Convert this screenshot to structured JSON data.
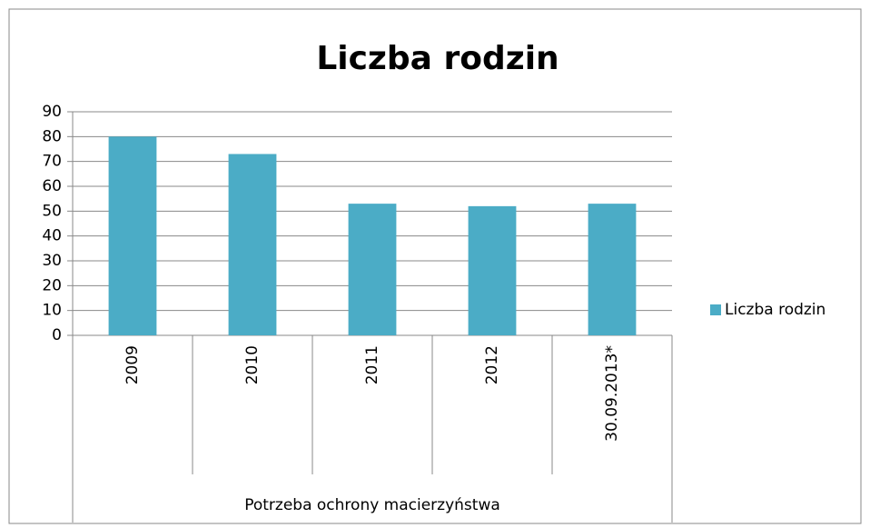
{
  "chart_data": {
    "type": "bar",
    "title": "Liczba rodzin",
    "categories": [
      "2009",
      "2010",
      "2011",
      "2012",
      "30.09.2013*"
    ],
    "series": [
      {
        "name": "Liczba rodzin",
        "color": "#4bacc6",
        "values": [
          80,
          73,
          53,
          52,
          53
        ]
      }
    ],
    "xlabel": "Potrzeba ochrony macierzyństwa",
    "ylim": [
      0,
      90
    ],
    "yticks": [
      0,
      10,
      20,
      30,
      40,
      50,
      60,
      70,
      80,
      90
    ],
    "grid": true,
    "legend": "right"
  }
}
